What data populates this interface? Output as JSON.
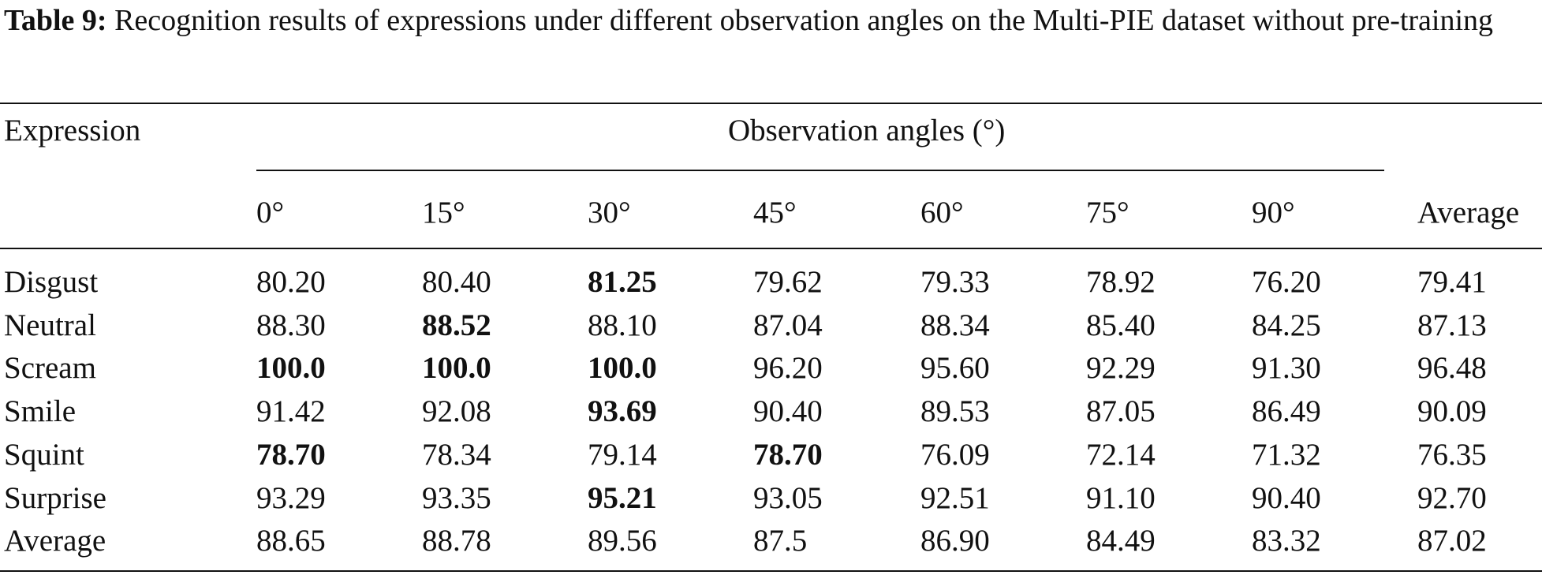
{
  "caption": {
    "label": "Table 9:",
    "text": " Recognition results of expressions under different observation angles on the Multi-PIE dataset without pre-training"
  },
  "header": {
    "row_label": "Expression",
    "group_label": "Observation angles (°)",
    "angles": [
      "0°",
      "15°",
      "30°",
      "45°",
      "60°",
      "75°",
      "90°"
    ],
    "average_label": "Average"
  },
  "rows": [
    {
      "label": "Disgust",
      "values": [
        "80.20",
        "80.40",
        "81.25",
        "79.62",
        "79.33",
        "78.92",
        "76.20"
      ],
      "average": "79.41",
      "bold": [
        2
      ]
    },
    {
      "label": "Neutral",
      "values": [
        "88.30",
        "88.52",
        "88.10",
        "87.04",
        "88.34",
        "85.40",
        "84.25"
      ],
      "average": "87.13",
      "bold": [
        1
      ]
    },
    {
      "label": "Scream",
      "values": [
        "100.0",
        "100.0",
        "100.0",
        "96.20",
        "95.60",
        "92.29",
        "91.30"
      ],
      "average": "96.48",
      "bold": [
        0,
        1,
        2
      ]
    },
    {
      "label": "Smile",
      "values": [
        "91.42",
        "92.08",
        "93.69",
        "90.40",
        "89.53",
        "87.05",
        "86.49"
      ],
      "average": "90.09",
      "bold": [
        2
      ]
    },
    {
      "label": "Squint",
      "values": [
        "78.70",
        "78.34",
        "79.14",
        "78.70",
        "76.09",
        "72.14",
        "71.32"
      ],
      "average": "76.35",
      "bold": [
        0,
        3
      ]
    },
    {
      "label": "Surprise",
      "values": [
        "93.29",
        "93.35",
        "95.21",
        "93.05",
        "92.51",
        "91.10",
        "90.40"
      ],
      "average": "92.70",
      "bold": [
        2
      ]
    },
    {
      "label": "Average",
      "values": [
        "88.65",
        "88.78",
        "89.56",
        "87.5",
        "86.90",
        "84.49",
        "83.32"
      ],
      "average": "87.02",
      "bold": []
    }
  ]
}
